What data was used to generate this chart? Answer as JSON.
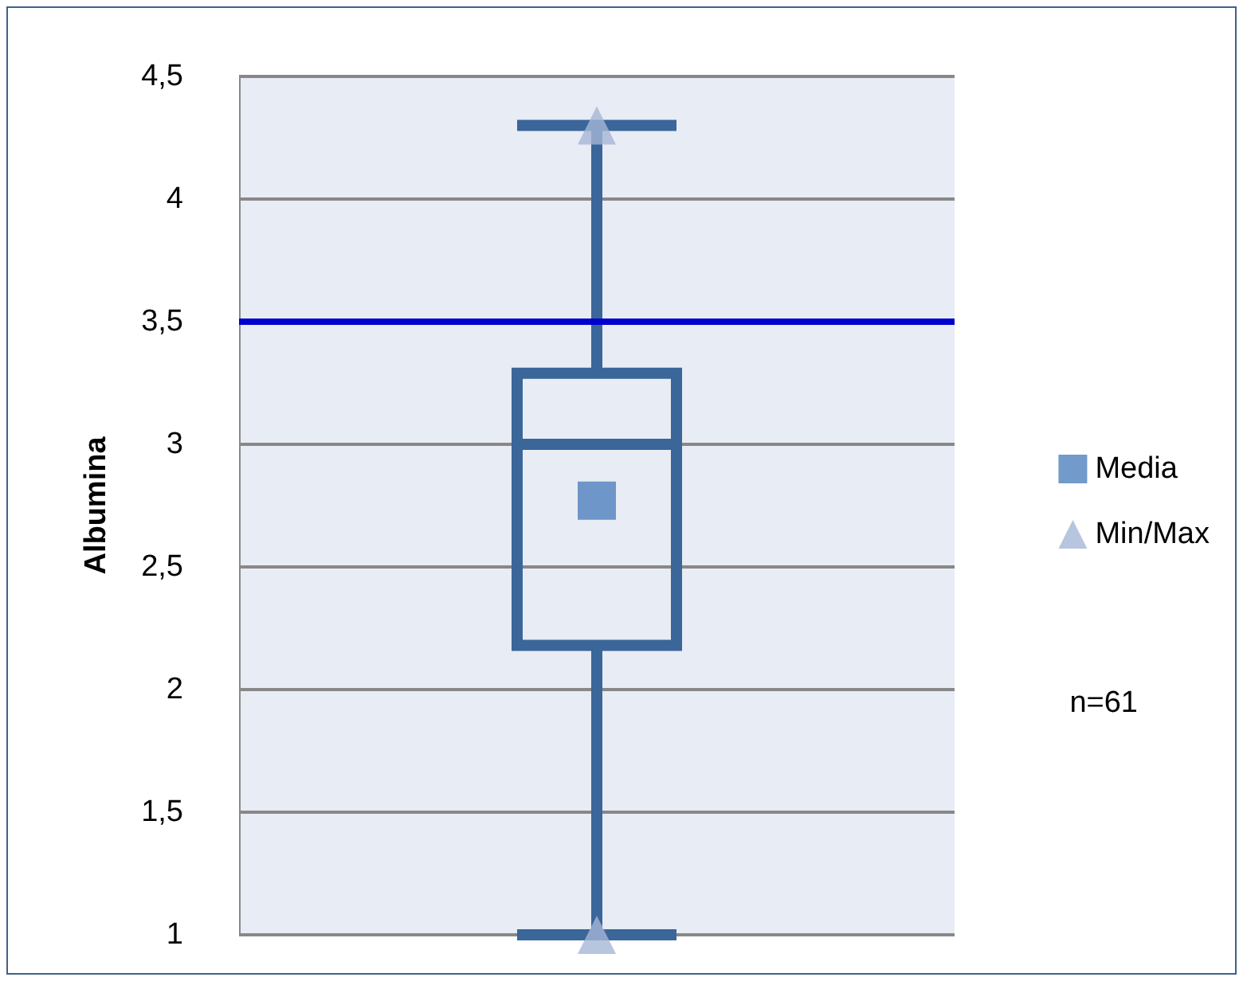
{
  "chart_data": {
    "type": "box",
    "ylabel": "Albumina",
    "categories": [
      null
    ],
    "ylim": [
      1,
      4.5
    ],
    "yticks": [
      {
        "value": 1,
        "label": "1"
      },
      {
        "value": 1.5,
        "label": "1,5"
      },
      {
        "value": 2,
        "label": "2"
      },
      {
        "value": 2.5,
        "label": "2,5"
      },
      {
        "value": 3,
        "label": "3"
      },
      {
        "value": 3.5,
        "label": "3,5"
      },
      {
        "value": 4,
        "label": "4"
      },
      {
        "value": 4.5,
        "label": "4,5"
      }
    ],
    "grid": "y",
    "legend": "right",
    "series": [
      {
        "color": "#3a6699",
        "boxes": [
          {
            "low": 1,
            "q1": 2.18,
            "median": 3,
            "q3": 3.29,
            "high": 4.3
          }
        ]
      },
      {
        "type": "scatter",
        "name": "Media",
        "color": "#4f81bd",
        "marker": "square",
        "values": [
          2.77
        ]
      },
      {
        "type": "scatter",
        "name": "Min/Max",
        "color": "#a5b6d6",
        "marker": "triangle",
        "values": [
          4.3
        ]
      },
      {
        "type": "scatter",
        "color": "#a5b6d6",
        "marker": "triangle",
        "values": [
          1
        ]
      }
    ],
    "ref_lines": [
      {
        "axis": "y",
        "value": 3.5,
        "color": "#0000cc"
      }
    ],
    "annotations": [
      "n=61"
    ]
  }
}
